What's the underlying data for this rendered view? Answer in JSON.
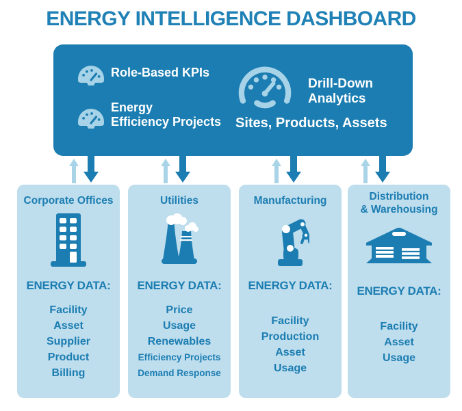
{
  "palette": {
    "brand_blue": "#1b7db1",
    "title_blue": "#1f81b5",
    "column_light_blue": "#bedded",
    "icon_light_blue": "#a7d3e8",
    "up_arrow_blue": "#a9d4e8",
    "text_white": "#ffffff"
  },
  "title": "ENERGY INTELLIGENCE DASHBOARD",
  "dashboard": {
    "features": [
      {
        "icon": "gauge-icon",
        "lines": [
          "Role-Based KPIs"
        ]
      },
      {
        "icon": "gauge-icon",
        "lines": [
          "Energy",
          "Efficiency Projects"
        ]
      },
      {
        "icon": "gauge-icon",
        "lines": [
          "Drill-Down",
          "Analytics"
        ]
      }
    ],
    "caption": "Sites, Products, Assets"
  },
  "columns": [
    {
      "title_lines": [
        "Corporate Offices"
      ],
      "icon": "office-building-icon",
      "energy_label": "ENERGY DATA:",
      "items": [
        "Facility",
        "Asset",
        "Supplier",
        "Product",
        "Billing"
      ]
    },
    {
      "title_lines": [
        "Utilities"
      ],
      "icon": "power-plant-icon",
      "energy_label": "ENERGY DATA:",
      "items": [
        "Price",
        "Usage",
        "Renewables",
        "Efficiency Projects",
        "Demand Response"
      ]
    },
    {
      "title_lines": [
        "Manufacturing"
      ],
      "icon": "robot-arm-icon",
      "energy_label": "ENERGY DATA:",
      "items": [
        "Facility",
        "Production",
        "Asset",
        "Usage"
      ]
    },
    {
      "title_lines": [
        "Distribution",
        "& Warehousing"
      ],
      "icon": "warehouse-icon",
      "energy_label": "ENERGY DATA:",
      "items": [
        "Facility",
        "Asset",
        "Usage"
      ]
    }
  ]
}
